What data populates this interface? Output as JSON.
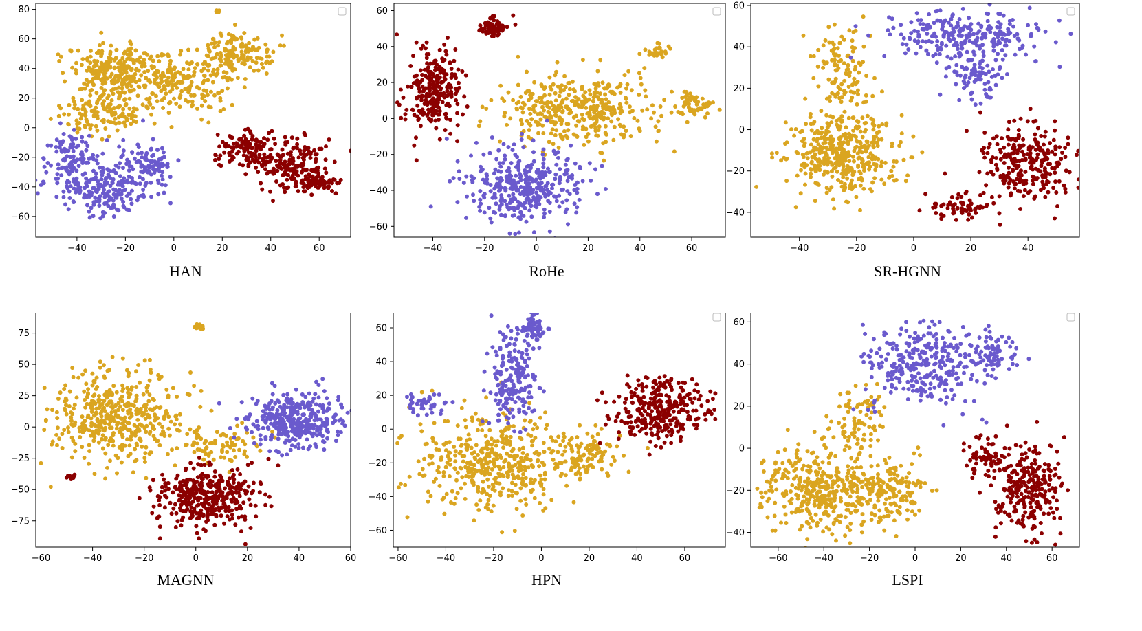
{
  "chart_data": [
    {
      "type": "scatter",
      "title": "HAN",
      "xlim": [
        -57,
        73
      ],
      "ylim": [
        -74,
        84
      ],
      "xticks": [
        -40,
        -20,
        0,
        20,
        40,
        60
      ],
      "yticks": [
        -60,
        -40,
        -20,
        0,
        20,
        40,
        60,
        80
      ],
      "legend": "top-right (empty)",
      "clusters": [
        {
          "series": "gold",
          "cx": -25,
          "cy": 40,
          "sx": 9,
          "sy": 8,
          "n": 220
        },
        {
          "series": "gold",
          "cx": 0,
          "cy": 30,
          "sx": 12,
          "sy": 10,
          "n": 220
        },
        {
          "series": "gold",
          "cx": 25,
          "cy": 50,
          "sx": 8,
          "sy": 7,
          "n": 160
        },
        {
          "series": "gold",
          "cx": -30,
          "cy": 10,
          "sx": 9,
          "sy": 7,
          "n": 140
        },
        {
          "series": "gold",
          "cx": 18,
          "cy": 79,
          "sx": 1,
          "sy": 0.5,
          "n": 8
        },
        {
          "series": "purple",
          "cx": -30,
          "cy": -40,
          "sx": 10,
          "sy": 9,
          "n": 220
        },
        {
          "series": "purple",
          "cx": -42,
          "cy": -20,
          "sx": 5,
          "sy": 8,
          "n": 90
        },
        {
          "series": "purple",
          "cx": -10,
          "cy": -25,
          "sx": 6,
          "sy": 8,
          "n": 90
        },
        {
          "series": "red",
          "cx": 30,
          "cy": -15,
          "sx": 7,
          "sy": 7,
          "n": 120
        },
        {
          "series": "red",
          "cx": 48,
          "cy": -25,
          "sx": 8,
          "sy": 8,
          "n": 170
        },
        {
          "series": "red",
          "cx": 58,
          "cy": -38,
          "sx": 5,
          "sy": 3,
          "n": 60
        }
      ]
    },
    {
      "type": "scatter",
      "title": "RoHe",
      "xlim": [
        -55,
        73
      ],
      "ylim": [
        -66,
        64
      ],
      "xticks": [
        -40,
        -20,
        0,
        20,
        40,
        60
      ],
      "yticks": [
        -60,
        -40,
        -20,
        0,
        20,
        40,
        60
      ],
      "legend": "top-right (empty)",
      "clusters": [
        {
          "series": "red",
          "cx": -40,
          "cy": 15,
          "sx": 5,
          "sy": 12,
          "n": 260
        },
        {
          "series": "red",
          "cx": -16,
          "cy": 51,
          "sx": 3,
          "sy": 3,
          "n": 60
        },
        {
          "series": "gold",
          "cx": 15,
          "cy": 5,
          "sx": 15,
          "sy": 9,
          "n": 400
        },
        {
          "series": "gold",
          "cx": 60,
          "cy": 8,
          "sx": 4,
          "sy": 4,
          "n": 60
        },
        {
          "series": "gold",
          "cx": 48,
          "cy": 38,
          "sx": 3,
          "sy": 2,
          "n": 25
        },
        {
          "series": "purple",
          "cx": -5,
          "cy": -37,
          "sx": 11,
          "sy": 10,
          "n": 380
        }
      ]
    },
    {
      "type": "scatter",
      "title": "SR-HGNN",
      "xlim": [
        -57,
        58
      ],
      "ylim": [
        -52,
        61
      ],
      "xticks": [
        -40,
        -20,
        0,
        20,
        40
      ],
      "yticks": [
        -40,
        -20,
        0,
        20,
        40,
        60
      ],
      "legend": "top-right (empty)",
      "clusters": [
        {
          "series": "gold",
          "cx": -25,
          "cy": -12,
          "sx": 10,
          "sy": 10,
          "n": 420
        },
        {
          "series": "gold",
          "cx": -25,
          "cy": 25,
          "sx": 5,
          "sy": 12,
          "n": 120
        },
        {
          "series": "purple",
          "cx": 20,
          "cy": 45,
          "sx": 14,
          "sy": 6,
          "n": 260
        },
        {
          "series": "purple",
          "cx": 22,
          "cy": 25,
          "sx": 4,
          "sy": 6,
          "n": 80
        },
        {
          "series": "red",
          "cx": 40,
          "cy": -15,
          "sx": 8,
          "sy": 9,
          "n": 260
        },
        {
          "series": "red",
          "cx": 15,
          "cy": -38,
          "sx": 6,
          "sy": 4,
          "n": 60
        }
      ]
    },
    {
      "type": "scatter",
      "title": "MAGNN",
      "xlim": [
        -62,
        60
      ],
      "ylim": [
        -96,
        94
      ],
      "xticks": [
        -60,
        -40,
        -20,
        0,
        20,
        40,
        60
      ],
      "yticks": [
        -75,
        -50,
        -25,
        0,
        25,
        50,
        75
      ],
      "legend": "none",
      "clusters": [
        {
          "series": "gold",
          "cx": -30,
          "cy": 10,
          "sx": 13,
          "sy": 18,
          "n": 460
        },
        {
          "series": "gold",
          "cx": 10,
          "cy": -15,
          "sx": 8,
          "sy": 8,
          "n": 80
        },
        {
          "series": "gold",
          "cx": 1,
          "cy": 80,
          "sx": 1,
          "sy": 1,
          "n": 12
        },
        {
          "series": "purple",
          "cx": 38,
          "cy": 5,
          "sx": 9,
          "sy": 11,
          "n": 380
        },
        {
          "series": "red",
          "cx": 5,
          "cy": -55,
          "sx": 10,
          "sy": 12,
          "n": 360
        },
        {
          "series": "red",
          "cx": -48,
          "cy": -40,
          "sx": 1,
          "sy": 1,
          "n": 12
        }
      ]
    },
    {
      "type": "scatter",
      "title": "HPN",
      "xlim": [
        -62,
        77
      ],
      "ylim": [
        -70,
        71
      ],
      "xticks": [
        -60,
        -40,
        -20,
        0,
        20,
        40,
        60
      ],
      "yticks": [
        -60,
        -40,
        -20,
        0,
        20,
        40,
        60
      ],
      "legend": "top-right (empty)",
      "clusters": [
        {
          "series": "gold",
          "cx": -20,
          "cy": -20,
          "sx": 18,
          "sy": 14,
          "n": 460
        },
        {
          "series": "gold",
          "cx": 20,
          "cy": -15,
          "sx": 6,
          "sy": 6,
          "n": 100
        },
        {
          "series": "purple",
          "cx": -12,
          "cy": 30,
          "sx": 5,
          "sy": 14,
          "n": 200
        },
        {
          "series": "purple",
          "cx": -3,
          "cy": 60,
          "sx": 3,
          "sy": 4,
          "n": 60
        },
        {
          "series": "purple",
          "cx": -50,
          "cy": 15,
          "sx": 5,
          "sy": 3,
          "n": 40
        },
        {
          "series": "red",
          "cx": 50,
          "cy": 12,
          "sx": 10,
          "sy": 9,
          "n": 300
        }
      ]
    },
    {
      "type": "scatter",
      "title": "LSPI",
      "xlim": [
        -72,
        72
      ],
      "ylim": [
        -47,
        66
      ],
      "xticks": [
        -60,
        -40,
        -20,
        0,
        20,
        40,
        60
      ],
      "yticks": [
        -40,
        -20,
        0,
        20,
        40,
        60
      ],
      "legend": "top-right (empty)",
      "clusters": [
        {
          "series": "gold",
          "cx": -40,
          "cy": -20,
          "sx": 14,
          "sy": 10,
          "n": 420
        },
        {
          "series": "gold",
          "cx": -10,
          "cy": -20,
          "sx": 8,
          "sy": 7,
          "n": 120
        },
        {
          "series": "gold",
          "cx": -25,
          "cy": 15,
          "sx": 6,
          "sy": 7,
          "n": 80
        },
        {
          "series": "purple",
          "cx": 5,
          "cy": 40,
          "sx": 12,
          "sy": 10,
          "n": 300
        },
        {
          "series": "purple",
          "cx": 33,
          "cy": 45,
          "sx": 5,
          "sy": 5,
          "n": 80
        },
        {
          "series": "red",
          "cx": 50,
          "cy": -20,
          "sx": 8,
          "sy": 10,
          "n": 260
        },
        {
          "series": "red",
          "cx": 30,
          "cy": -5,
          "sx": 5,
          "sy": 5,
          "n": 60
        }
      ]
    }
  ],
  "series_colors": {
    "gold": "#DAA520",
    "purple": "#6A5ACD",
    "red": "#8B0000"
  }
}
